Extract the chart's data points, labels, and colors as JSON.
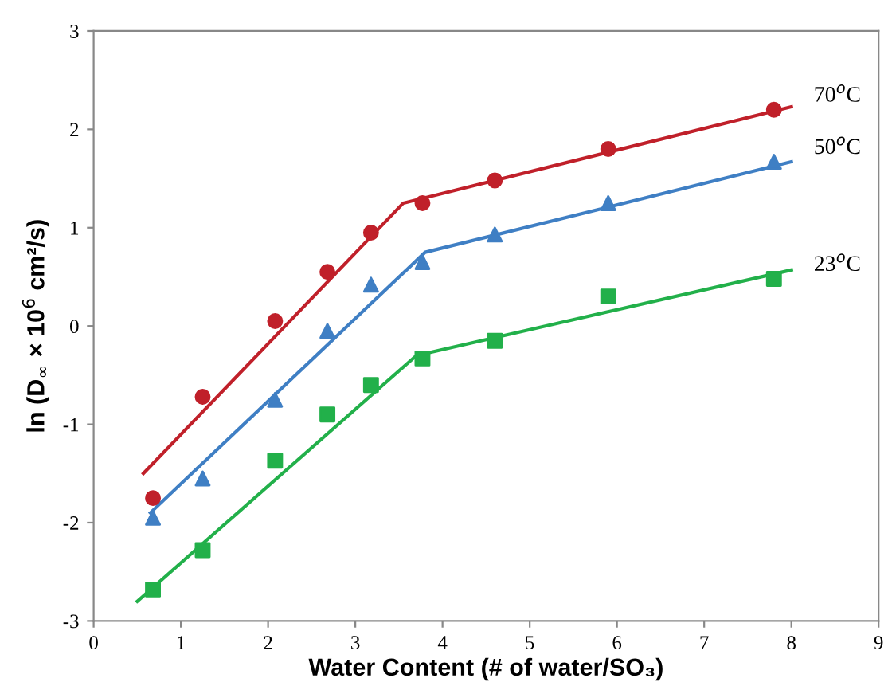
{
  "chart_data": {
    "type": "scatter",
    "xlabel": "Water Content (# of water/SO₃)",
    "ylabel": "ln (D$_{∞}$ × 10$^{6}$ cm²/s)",
    "xlim": [
      0,
      9
    ],
    "ylim": [
      -3,
      3
    ],
    "xticks": [
      0,
      1,
      2,
      3,
      4,
      5,
      6,
      7,
      8,
      9
    ],
    "yticks": [
      -3,
      -2,
      -1,
      0,
      1,
      2,
      3
    ],
    "grid": false,
    "legend": false,
    "series": [
      {
        "name": "70$^{o}$C",
        "marker": "circle",
        "color": "#c0202a",
        "x": [
          0.68,
          1.25,
          2.08,
          2.68,
          3.18,
          3.77,
          4.6,
          5.9,
          7.8
        ],
        "values": [
          -1.75,
          -0.72,
          0.05,
          0.55,
          0.95,
          1.25,
          1.48,
          1.8,
          2.2
        ]
      },
      {
        "name": "50$^{o}$C",
        "marker": "triangle",
        "color": "#3f7fc4",
        "x": [
          0.68,
          1.25,
          2.08,
          2.68,
          3.18,
          3.77,
          4.6,
          5.9,
          7.8
        ],
        "values": [
          -1.95,
          -1.55,
          -0.75,
          -0.05,
          0.42,
          0.65,
          0.93,
          1.25,
          1.67
        ]
      },
      {
        "name": "23$^{o}$C",
        "marker": "square",
        "color": "#22b04a",
        "x": [
          0.68,
          1.25,
          2.08,
          2.68,
          3.18,
          3.77,
          4.6,
          5.9,
          7.8
        ],
        "values": [
          -2.68,
          -2.28,
          -1.37,
          -0.9,
          -0.6,
          -0.33,
          -0.15,
          0.3,
          0.48
        ]
      },
      {
        "type": "line",
        "marker": "none",
        "line_style": "solid",
        "color": "#c0202a",
        "x": [
          0.57,
          3.55,
          8.0
        ],
        "values": [
          -1.5,
          1.25,
          2.23
        ]
      },
      {
        "type": "line",
        "marker": "none",
        "line_style": "solid",
        "color": "#3f7fc4",
        "x": [
          0.65,
          3.8,
          8.0
        ],
        "values": [
          -1.9,
          0.75,
          1.67
        ]
      },
      {
        "type": "line",
        "marker": "none",
        "line_style": "solid",
        "color": "#22b04a",
        "x": [
          0.5,
          3.7,
          8.0
        ],
        "values": [
          -2.8,
          -0.3,
          0.57
        ]
      }
    ]
  }
}
